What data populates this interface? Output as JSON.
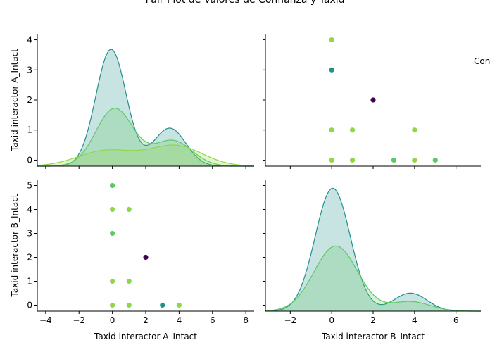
{
  "chart_data": {
    "type": "pairplot",
    "title": "Pair Plot de Valores de Confianza y Taxid",
    "legend_title": "Con",
    "legend_placement": "right",
    "variables": [
      "Taxid interactor A_Intact",
      "Taxid interactor B_Intact"
    ],
    "colors": {
      "hue_dark": "#440154",
      "hue_teal": "#21918c",
      "hue_green": "#5ec962",
      "hue_yellowgreen": "#7ad151",
      "hue_lime": "#8fd744"
    },
    "panels": [
      {
        "id": "A_vs_A",
        "type": "kde",
        "variable": "Taxid interactor A_Intact",
        "ylabel": "Taxid interactor A_Intact",
        "xlim": [
          -4,
          8.2
        ],
        "ylim": [
          -0.2,
          4.2
        ],
        "yticks": [
          0,
          1,
          2,
          3,
          4
        ],
        "series": [
          {
            "color": "teal",
            "components": [
              {
                "mu": 0.15,
                "sigma": 0.85,
                "amp": 3.75
              },
              {
                "mu": 3.45,
                "sigma": 0.9,
                "amp": 1.22
              }
            ]
          },
          {
            "color": "green",
            "components": [
              {
                "mu": 0.35,
                "sigma": 1.05,
                "amp": 1.85
              },
              {
                "mu": 3.6,
                "sigma": 1.1,
                "amp": 0.82
              }
            ]
          },
          {
            "color": "lime",
            "components": [
              {
                "mu": -0.1,
                "sigma": 1.6,
                "amp": 0.5
              },
              {
                "mu": 3.8,
                "sigma": 1.5,
                "amp": 0.65
              }
            ]
          }
        ]
      },
      {
        "id": "A_vs_B",
        "type": "scatter",
        "xlim": [
          -3.2,
          7.2
        ],
        "ylim": [
          -0.2,
          4.2
        ],
        "points": [
          {
            "x": 0,
            "y": 4,
            "color": "lime"
          },
          {
            "x": 0,
            "y": 3,
            "color": "teal"
          },
          {
            "x": 2,
            "y": 2,
            "color": "dark"
          },
          {
            "x": 0,
            "y": 1,
            "color": "lime"
          },
          {
            "x": 1,
            "y": 1,
            "color": "lime"
          },
          {
            "x": 4,
            "y": 1,
            "color": "lime"
          },
          {
            "x": 0,
            "y": 0,
            "color": "lime"
          },
          {
            "x": 1,
            "y": 0,
            "color": "lime"
          },
          {
            "x": 3,
            "y": 0,
            "color": "green"
          },
          {
            "x": 4,
            "y": 0,
            "color": "lime"
          },
          {
            "x": 5,
            "y": 0,
            "color": "green"
          }
        ]
      },
      {
        "id": "B_vs_A",
        "type": "scatter",
        "ylabel": "Taxid interactor B_Intact",
        "xlabel": "Taxid interactor A_Intact",
        "xlim": [
          -4.5,
          8.5
        ],
        "ylim": [
          -0.25,
          5.25
        ],
        "xticks": [
          -4,
          -2,
          0,
          2,
          4,
          6,
          8
        ],
        "yticks": [
          0,
          1,
          2,
          3,
          4,
          5
        ],
        "points": [
          {
            "x": 0,
            "y": 5,
            "color": "green"
          },
          {
            "x": 0,
            "y": 4,
            "color": "lime"
          },
          {
            "x": 1,
            "y": 4,
            "color": "lime"
          },
          {
            "x": 0,
            "y": 3,
            "color": "green"
          },
          {
            "x": 2,
            "y": 2,
            "color": "dark"
          },
          {
            "x": 0,
            "y": 1,
            "color": "lime"
          },
          {
            "x": 1,
            "y": 1,
            "color": "lime"
          },
          {
            "x": 0,
            "y": 0,
            "color": "lime"
          },
          {
            "x": 1,
            "y": 0,
            "color": "lime"
          },
          {
            "x": 3,
            "y": 0,
            "color": "teal"
          },
          {
            "x": 4,
            "y": 0,
            "color": "lime"
          }
        ]
      },
      {
        "id": "B_vs_B",
        "type": "kde",
        "variable": "Taxid interactor B_Intact",
        "xlabel": "Taxid interactor B_Intact",
        "xlim": [
          -3.2,
          7.2
        ],
        "xticks": [
          -2,
          0,
          2,
          4,
          6
        ],
        "series": [
          {
            "color": "teal",
            "components": [
              {
                "mu": 0.05,
                "sigma": 0.85,
                "amp": 4.9
              },
              {
                "mu": 3.8,
                "sigma": 0.8,
                "amp": 0.72
              }
            ]
          },
          {
            "color": "green",
            "components": [
              {
                "mu": 0.2,
                "sigma": 1.05,
                "amp": 2.6
              },
              {
                "mu": 3.8,
                "sigma": 0.95,
                "amp": 0.38
              }
            ]
          }
        ]
      }
    ]
  }
}
